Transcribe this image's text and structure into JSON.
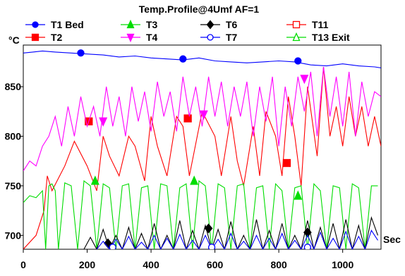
{
  "chart_data": {
    "type": "line",
    "title": "Temp.Profile@4Umf AF=1",
    "ylabel": "°C",
    "xlabel": "Sec",
    "xlim": [
      0,
      1120
    ],
    "ylim": [
      686,
      892
    ],
    "x_ticks": [
      0,
      200,
      400,
      600,
      800,
      1000
    ],
    "y_ticks": [
      700,
      750,
      800,
      850
    ],
    "grid": false,
    "legend_position": "top",
    "series": [
      {
        "name": "T1 Bed",
        "color": "#0000ff",
        "marker": "circle-filled",
        "x": [
          0,
          30,
          60,
          100,
          150,
          200,
          250,
          300,
          350,
          400,
          450,
          500,
          550,
          600,
          650,
          700,
          750,
          800,
          850,
          900,
          950,
          1000,
          1050,
          1100,
          1120
        ],
        "y": [
          884,
          885,
          886,
          885,
          884,
          883,
          882,
          880,
          881,
          879,
          878,
          877,
          879,
          876,
          875,
          874,
          875,
          876,
          875,
          872,
          871,
          873,
          871,
          870,
          869
        ],
        "marker_x": [
          180,
          500,
          860
        ],
        "marker_y": [
          884,
          878,
          876
        ]
      },
      {
        "name": "T2",
        "color": "#ff0000",
        "marker": "square-filled",
        "x": [
          0,
          40,
          65,
          75,
          90,
          130,
          160,
          200,
          230,
          250,
          270,
          300,
          330,
          350,
          380,
          400,
          420,
          450,
          480,
          500,
          520,
          560,
          600,
          620,
          650,
          670,
          690,
          720,
          740,
          760,
          790,
          810,
          830,
          850,
          870,
          890,
          920,
          940,
          960,
          980,
          1000,
          1020,
          1040,
          1060,
          1080,
          1100,
          1120
        ],
        "y": [
          686,
          700,
          725,
          760,
          745,
          770,
          795,
          770,
          745,
          800,
          780,
          760,
          800,
          790,
          755,
          820,
          790,
          760,
          820,
          810,
          760,
          825,
          800,
          760,
          820,
          775,
          750,
          810,
          760,
          825,
          800,
          760,
          840,
          800,
          750,
          850,
          780,
          870,
          800,
          830,
          790,
          840,
          800,
          830,
          790,
          820,
          790
        ],
        "marker_x": [
          205,
          515,
          825
        ],
        "marker_y": [
          815,
          818,
          773
        ]
      },
      {
        "name": "T3",
        "color": "#00dd00",
        "marker": "triangle-up-filled",
        "x": [
          0,
          20,
          40,
          60,
          70,
          80,
          90,
          100,
          110,
          130,
          150,
          170,
          190,
          210,
          230,
          250,
          270,
          290,
          310,
          330,
          350,
          370,
          390,
          410,
          430,
          450,
          470,
          490,
          510,
          530,
          550,
          570,
          590,
          610,
          630,
          650,
          670,
          690,
          710,
          730,
          750,
          770,
          790,
          810,
          830,
          850,
          870,
          890,
          910,
          930,
          950,
          970,
          990,
          1010,
          1030,
          1050,
          1070,
          1090,
          1110
        ],
        "y": [
          733,
          740,
          738,
          745,
          686,
          750,
          752,
          745,
          686,
          753,
          750,
          686,
          755,
          750,
          686,
          752,
          748,
          686,
          750,
          752,
          686,
          748,
          750,
          686,
          752,
          750,
          686,
          748,
          752,
          686,
          755,
          750,
          686,
          752,
          748,
          686,
          750,
          752,
          686,
          748,
          750,
          686,
          752,
          745,
          686,
          748,
          750,
          686,
          752,
          745,
          686,
          750,
          748,
          686,
          752,
          748,
          686,
          750,
          750
        ],
        "marker_x": [
          225,
          535,
          860
        ],
        "marker_y": [
          755,
          755,
          740
        ]
      },
      {
        "name": "T4",
        "color": "#ff00ff",
        "marker": "triangle-down-filled",
        "x": [
          0,
          20,
          40,
          60,
          80,
          100,
          120,
          140,
          160,
          180,
          200,
          220,
          240,
          260,
          280,
          300,
          320,
          340,
          360,
          380,
          400,
          420,
          440,
          460,
          480,
          500,
          520,
          540,
          560,
          580,
          600,
          620,
          640,
          660,
          680,
          700,
          720,
          740,
          760,
          780,
          800,
          820,
          840,
          860,
          880,
          900,
          920,
          940,
          960,
          980,
          1000,
          1020,
          1040,
          1060,
          1080,
          1100,
          1120
        ],
        "y": [
          765,
          775,
          770,
          790,
          800,
          820,
          790,
          830,
          800,
          840,
          810,
          830,
          800,
          850,
          810,
          840,
          800,
          850,
          815,
          845,
          805,
          855,
          820,
          845,
          805,
          860,
          820,
          850,
          810,
          860,
          820,
          855,
          810,
          850,
          820,
          855,
          800,
          850,
          815,
          860,
          790,
          850,
          810,
          860,
          825,
          865,
          800,
          870,
          820,
          860,
          810,
          865,
          800,
          855,
          820,
          845,
          840
        ],
        "marker_x": [
          250,
          565,
          880
        ],
        "marker_y": [
          815,
          822,
          858
        ]
      },
      {
        "name": "T6",
        "color": "#000000",
        "marker": "diamond-filled",
        "x": [
          190,
          210,
          230,
          250,
          270,
          290,
          310,
          330,
          350,
          370,
          390,
          410,
          430,
          450,
          470,
          490,
          510,
          530,
          550,
          570,
          590,
          610,
          630,
          650,
          670,
          690,
          710,
          730,
          750,
          770,
          790,
          810,
          830,
          850,
          870,
          890,
          910,
          930,
          950,
          970,
          990,
          1010,
          1030,
          1050,
          1070,
          1090,
          1110
        ],
        "y": [
          686,
          698,
          686,
          706,
          686,
          700,
          686,
          708,
          686,
          702,
          686,
          712,
          686,
          700,
          686,
          715,
          686,
          705,
          686,
          710,
          686,
          706,
          686,
          714,
          686,
          700,
          686,
          716,
          686,
          705,
          686,
          712,
          686,
          700,
          686,
          715,
          686,
          708,
          686,
          712,
          686,
          716,
          686,
          710,
          686,
          718,
          700
        ],
        "marker_x": [
          265,
          580,
          890
        ],
        "marker_y": [
          692,
          707,
          703
        ]
      },
      {
        "name": "T7",
        "color": "#0000ff",
        "marker": "circle-open",
        "x": [
          230,
          250,
          270,
          290,
          310,
          330,
          350,
          370,
          390,
          410,
          430,
          450,
          470,
          490,
          510,
          530,
          550,
          570,
          590,
          610,
          630,
          650,
          670,
          690,
          710,
          730,
          750,
          770,
          790,
          810,
          830,
          850,
          870,
          890,
          910,
          930,
          950,
          970,
          990,
          1010,
          1030,
          1050,
          1070,
          1090,
          1110
        ],
        "y": [
          686,
          694,
          686,
          696,
          686,
          699,
          686,
          693,
          686,
          700,
          686,
          697,
          686,
          701,
          686,
          695,
          686,
          700,
          686,
          696,
          686,
          702,
          686,
          694,
          686,
          700,
          686,
          697,
          686,
          702,
          686,
          695,
          686,
          700,
          686,
          703,
          686,
          697,
          686,
          704,
          686,
          699,
          686,
          705,
          695
        ],
        "marker_x": [
          280,
          590,
          890
        ],
        "marker_y": [
          688,
          688,
          688
        ]
      },
      {
        "name": "T11",
        "color": "#ff0000",
        "marker": "square-open",
        "x": [],
        "y": [],
        "marker_x": [],
        "marker_y": []
      },
      {
        "name": "T13 Exit",
        "color": "#00dd00",
        "marker": "triangle-up-open",
        "x": [],
        "y": [],
        "marker_x": [],
        "marker_y": []
      }
    ]
  }
}
